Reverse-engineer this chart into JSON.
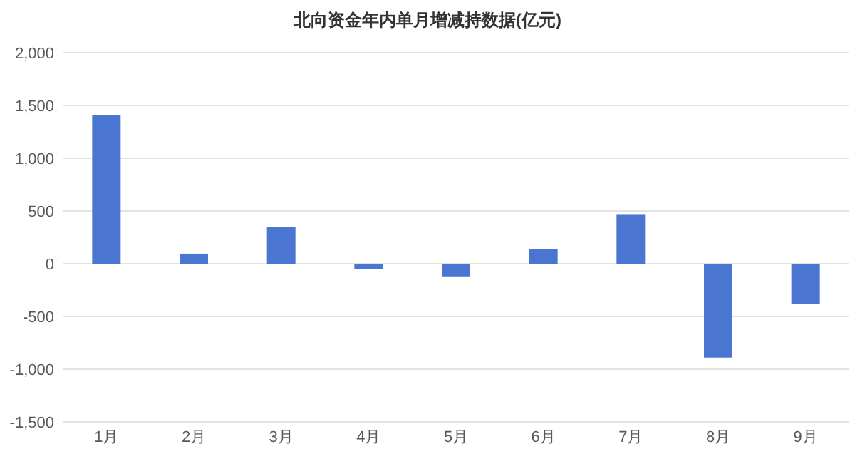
{
  "chart_data": {
    "type": "bar",
    "title": "北向资金年内单月增减持数据(亿元)",
    "categories": [
      "1月",
      "2月",
      "3月",
      "4月",
      "5月",
      "6月",
      "7月",
      "8月",
      "9月"
    ],
    "values": [
      1410,
      95,
      350,
      -50,
      -120,
      135,
      470,
      -890,
      -380
    ],
    "color": "#4a76d1",
    "ylim": [
      -1500,
      2000
    ],
    "yticks": [
      {
        "value": -1500,
        "label": "-1,500"
      },
      {
        "value": -1000,
        "label": "-1,000"
      },
      -500,
      0,
      500,
      {
        "value": 1000,
        "label": "1,000"
      },
      {
        "value": 1500,
        "label": "1,500"
      },
      {
        "value": 2000,
        "label": "2,000"
      }
    ],
    "grid": "y"
  }
}
